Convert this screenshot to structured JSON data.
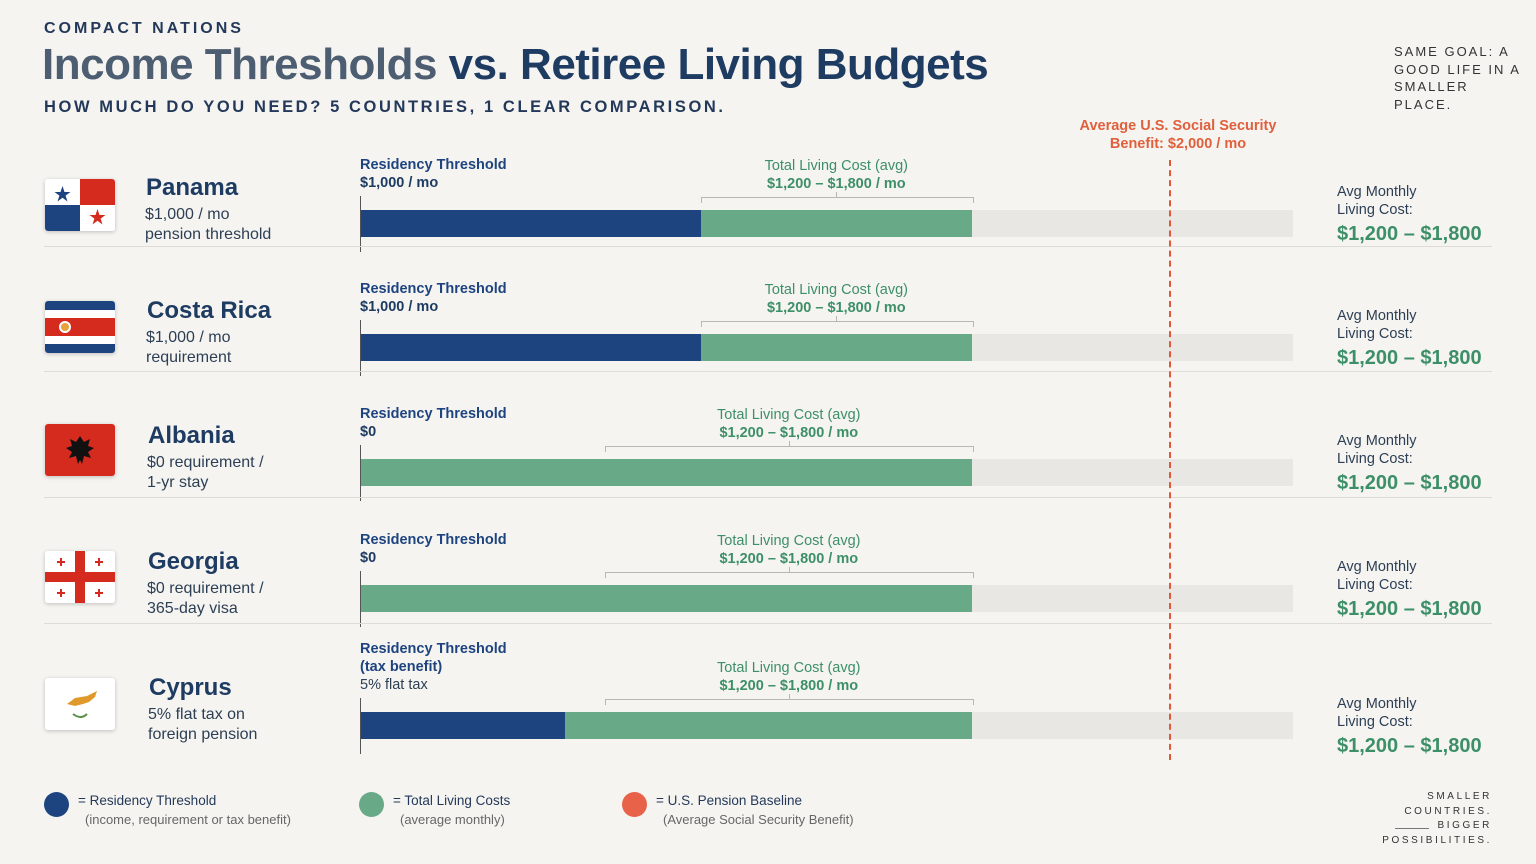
{
  "header": {
    "kicker": "COMPACT NATIONS",
    "title_part1": "Income Thresholds",
    "title_part2": " vs. Retiree Living Budgets",
    "subtitle": "HOW MUCH DO YOU NEED? 5 COUNTRIES, 1 CLEAR COMPARISON.",
    "tagline": "SAME GOAL: A GOOD LIFE IN A SMALLER PLACE."
  },
  "reference_line": {
    "label_line1": "Average U.S. Social Security",
    "label_line2": "Benefit: $2,000 / mo",
    "value": 2000
  },
  "colors": {
    "threshold": "#1e4480",
    "living_cost": "#68aa88",
    "pension_baseline": "#e8624a"
  },
  "rows": [
    {
      "country": "Panama",
      "flag": "panama-flag",
      "desc1": "$1,000 / mo",
      "desc2": "pension threshold",
      "threshold_label_lines": [
        "Residency Threshold"
      ],
      "threshold_value_label": "$1,000 / mo",
      "threshold_value": 1000,
      "living_label": "Total Living Cost (avg)",
      "living_value_label": "$1,200 – $1,800 / mo",
      "living_low": 1200,
      "living_high": 1800,
      "avg_label_1": "Avg Monthly",
      "avg_label_2": "Living Cost:",
      "avg_value": "$1,200 – $1,800"
    },
    {
      "country": "Costa Rica",
      "flag": "costa-rica-flag",
      "desc1": "$1,000 / mo",
      "desc2": "requirement",
      "threshold_label_lines": [
        "Residency Threshold"
      ],
      "threshold_value_label": "$1,000 / mo",
      "threshold_value": 1000,
      "living_label": "Total Living Cost (avg)",
      "living_value_label": "$1,200 – $1,800 / mo",
      "living_low": 1200,
      "living_high": 1800,
      "avg_label_1": "Avg Monthly",
      "avg_label_2": "Living Cost:",
      "avg_value": "$1,200 – $1,800"
    },
    {
      "country": "Albania",
      "flag": "albania-flag",
      "desc1": "$0 requirement /",
      "desc2": "1-yr stay",
      "threshold_label_lines": [
        "Residency Threshold"
      ],
      "threshold_value_label": "$0",
      "threshold_value": 0,
      "living_label": "Total Living Cost (avg)",
      "living_value_label": "$1,200 – $1,800 / mo",
      "living_low": 1200,
      "living_high": 1800,
      "avg_label_1": "Avg Monthly",
      "avg_label_2": "Living Cost:",
      "avg_value": "$1,200 – $1,800"
    },
    {
      "country": "Georgia",
      "flag": "georgia-flag",
      "desc1": "$0 requirement /",
      "desc2": "365-day visa",
      "threshold_label_lines": [
        "Residency Threshold"
      ],
      "threshold_value_label": "$0",
      "threshold_value": 0,
      "living_label": "Total Living Cost (avg)",
      "living_value_label": "$1,200 – $1,800 / mo",
      "living_low": 1200,
      "living_high": 1800,
      "avg_label_1": "Avg Monthly",
      "avg_label_2": "Living Cost:",
      "avg_value": "$1,200 – $1,800"
    },
    {
      "country": "Cyprus",
      "flag": "cyprus-flag",
      "desc1": "5% flat tax on",
      "desc2": "foreign pension",
      "threshold_label_lines": [
        "Residency Threshold",
        "(tax benefit)"
      ],
      "threshold_value_label": "5% flat tax",
      "threshold_value": 600,
      "living_label": "Total Living Cost (avg)",
      "living_value_label": "$1,200 – $1,800 / mo",
      "living_low": 1200,
      "living_high": 1800,
      "avg_label_1": "Avg Monthly",
      "avg_label_2": "Living Cost:",
      "avg_value": "$1,200 – $1,800"
    }
  ],
  "legend": [
    {
      "label": "= Residency Threshold",
      "sub": "(income, requirement or tax benefit)"
    },
    {
      "label": "= Total Living Costs",
      "sub": "(average monthly)"
    },
    {
      "label": "= U.S. Pension Baseline",
      "sub": "(Average Social Security Benefit)"
    }
  ],
  "footer": {
    "line1": "SMALLER COUNTRIES.",
    "line2": "BIGGER POSSIBILITIES."
  },
  "chart_data": {
    "type": "bar",
    "categories": [
      "Panama",
      "Costa Rica",
      "Albania",
      "Georgia",
      "Cyprus"
    ],
    "series": [
      {
        "name": "Residency Threshold",
        "values": [
          1000,
          1000,
          0,
          0,
          600
        ]
      },
      {
        "name": "Total Living Costs",
        "values": [
          1800,
          1800,
          1800,
          1800,
          1800
        ]
      }
    ],
    "living_cost_range": [
      1200,
      1800
    ],
    "reference_value": 2000,
    "title": "Income Thresholds vs. Retiree Living Budgets",
    "xlim": [
      0,
      2300
    ],
    "grid": false,
    "legend_position": "bottom"
  }
}
